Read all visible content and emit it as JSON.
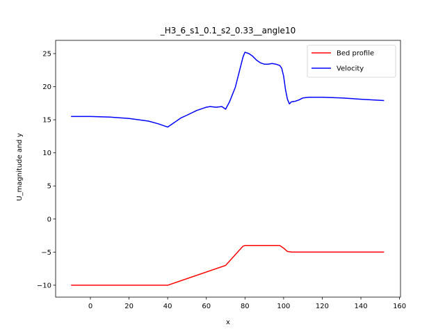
{
  "chart_data": {
    "type": "line",
    "title": "_H3_6_s1_0.1_s2_0.33__angle10",
    "xlabel": "x",
    "ylabel": "U_magnitude and y",
    "xlim": [
      -18,
      160.5
    ],
    "ylim": [
      -11.8,
      27
    ],
    "xticks": [
      0,
      20,
      40,
      60,
      80,
      100,
      120,
      140,
      160
    ],
    "yticks": [
      -10,
      -5,
      0,
      5,
      10,
      15,
      20,
      25
    ],
    "legend_position": "top-right",
    "grid": false,
    "series": [
      {
        "name": "Bed profile",
        "color": "#ff0000",
        "x": [
          -10,
          0,
          20,
          40,
          70,
          79,
          80,
          90,
          98,
          100,
          102,
          104,
          120,
          140,
          152
        ],
        "y": [
          -10,
          -10,
          -10,
          -10,
          -7,
          -4.1,
          -4,
          -4,
          -4,
          -4.4,
          -4.9,
          -5,
          -5,
          -5,
          -5
        ]
      },
      {
        "name": "Velocity",
        "color": "#0000ff",
        "x": [
          -10,
          0,
          10,
          20,
          30,
          35,
          38,
          40,
          43,
          47,
          50,
          55,
          60,
          62,
          65,
          68,
          70,
          72,
          75,
          77,
          79,
          80,
          82,
          84,
          86,
          88,
          90,
          92,
          94,
          96,
          98,
          99,
          100,
          101,
          102,
          103,
          104,
          106,
          108,
          110,
          113,
          120,
          130,
          140,
          152
        ],
        "y": [
          15.5,
          15.5,
          15.4,
          15.2,
          14.8,
          14.4,
          14.1,
          13.9,
          14.5,
          15.3,
          15.7,
          16.4,
          16.9,
          17,
          16.9,
          17,
          16.6,
          17.7,
          19.9,
          22.2,
          24.5,
          25.2,
          25.0,
          24.6,
          24.0,
          23.6,
          23.4,
          23.4,
          23.5,
          23.4,
          23.2,
          22.8,
          21.6,
          19.5,
          18.1,
          17.4,
          17.7,
          17.8,
          18.0,
          18.3,
          18.4,
          18.4,
          18.3,
          18.1,
          17.9
        ]
      }
    ]
  }
}
